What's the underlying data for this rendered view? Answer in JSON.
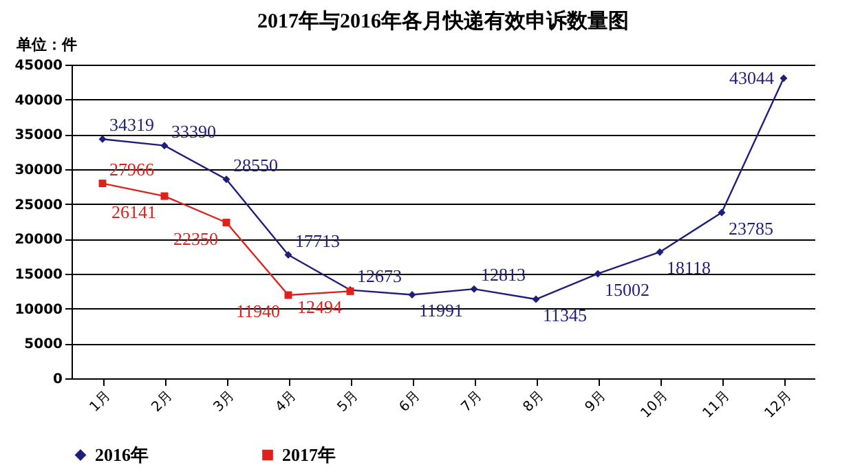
{
  "chart_data": {
    "type": "line",
    "title": "2017年与2016年各月快递有效申诉数量图",
    "annotations": [
      "单位：件"
    ],
    "categories": [
      "1月",
      "2月",
      "3月",
      "4月",
      "5月",
      "6月",
      "7月",
      "8月",
      "9月",
      "10月",
      "11月",
      "12月"
    ],
    "series": [
      {
        "name": "2016年",
        "color": "#1f1f7a",
        "marker": "diamond",
        "values": [
          34319,
          33390,
          28550,
          17713,
          12673,
          11991,
          12813,
          11345,
          15002,
          18118,
          23785,
          43044
        ]
      },
      {
        "name": "2017年",
        "color": "#e0201b",
        "marker": "square",
        "values": [
          27966,
          26141,
          22350,
          11940,
          12494,
          null,
          null,
          null,
          null,
          null,
          null,
          null
        ]
      }
    ],
    "ylim": [
      0,
      45000
    ],
    "yticks": [
      0,
      5000,
      10000,
      15000,
      20000,
      25000,
      30000,
      35000,
      40000,
      45000
    ],
    "grid": "y",
    "legend": "bottom",
    "data_labels": true,
    "line_style": "solid"
  }
}
